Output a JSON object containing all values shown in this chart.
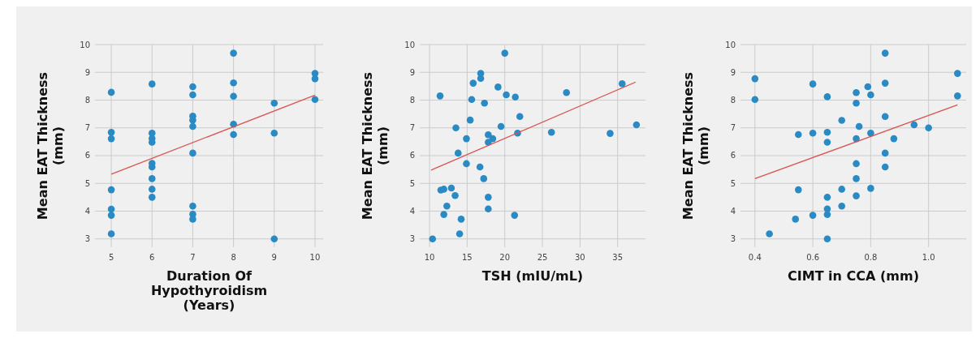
{
  "chart_data": [
    {
      "type": "scatter",
      "xlabel": "Duration Of\nHypothyroidism\n(Years)",
      "ylabel": "Mean EAT Thickness\n(mm)",
      "xlim": [
        4.6,
        10.2
      ],
      "ylim": [
        2.7,
        10
      ],
      "xticks": [
        5,
        6,
        7,
        8,
        9,
        10
      ],
      "yticks": [
        3,
        4,
        5,
        6,
        7,
        8,
        9,
        10
      ],
      "grid": true,
      "marker": "circle",
      "series": [
        {
          "color": "#2a8bc4",
          "x": [
            5,
            5,
            5,
            5,
            5,
            5,
            5,
            6,
            6,
            6,
            6,
            6,
            6,
            6,
            6,
            6,
            7,
            7,
            7,
            7,
            7,
            7,
            7,
            7,
            7,
            8,
            8,
            8,
            8,
            8,
            9,
            9,
            9,
            10,
            10,
            10
          ],
          "values": [
            8.28,
            6.84,
            6.61,
            4.77,
            4.07,
            3.85,
            3.18,
            8.58,
            6.81,
            6.62,
            6.48,
            5.72,
            5.59,
            5.17,
            4.79,
            4.5,
            8.48,
            8.19,
            7.42,
            7.28,
            7.05,
            6.09,
            4.18,
            3.89,
            3.71,
            9.69,
            8.62,
            8.14,
            7.13,
            6.76,
            7.89,
            6.81,
            3.0,
            8.96,
            8.77,
            8.02
          ]
        },
        {
          "type": "line",
          "color": "#d9534f",
          "marker": "none",
          "x": [
            5,
            10
          ],
          "values": [
            5.33,
            8.18
          ]
        }
      ]
    },
    {
      "type": "scatter",
      "xlabel": "TSH (mIU/mL)",
      "ylabel": "Mean EAT Thickness\n(mm)",
      "xlim": [
        8.7,
        38.7
      ],
      "ylim": [
        2.7,
        10
      ],
      "xticks": [
        10,
        15,
        20,
        25,
        30,
        35
      ],
      "yticks": [
        3,
        4,
        5,
        6,
        7,
        8,
        9,
        10
      ],
      "grid": true,
      "marker": "circle",
      "series": [
        {
          "color": "#2a8bc4",
          "x": [
            20.0,
            16.8,
            16.8,
            15.8,
            19.1,
            11.4,
            20.2,
            21.4,
            15.6,
            17.3,
            28.2,
            35.6,
            15.4,
            22.0,
            13.5,
            19.5,
            37.5,
            26.2,
            34.0,
            21.7,
            17.8,
            18.4,
            14.9,
            17.8,
            13.8,
            14.9,
            16.7,
            17.2,
            11.5,
            11.9,
            12.9,
            13.4,
            17.8,
            12.3,
            11.9,
            17.8,
            14.2,
            21.3,
            14.0,
            10.4
          ],
          "values": [
            9.69,
            8.96,
            8.78,
            8.61,
            8.47,
            8.15,
            8.19,
            8.11,
            8.02,
            7.89,
            8.27,
            8.59,
            7.28,
            7.41,
            7.0,
            7.05,
            7.11,
            6.84,
            6.8,
            6.81,
            6.75,
            6.61,
            6.61,
            6.48,
            6.09,
            5.71,
            5.59,
            5.17,
            4.76,
            4.79,
            4.83,
            4.56,
            4.5,
            4.18,
            3.88,
            4.08,
            3.71,
            3.85,
            3.18,
            3.0
          ]
        },
        {
          "type": "line",
          "color": "#d9534f",
          "marker": "none",
          "x": [
            10.2,
            37.4
          ],
          "values": [
            5.48,
            8.65
          ]
        }
      ]
    },
    {
      "type": "scatter",
      "xlabel": "CIMT in CCA (mm)",
      "ylabel": "Mean EAT Thickness\n(mm)",
      "xlim": [
        0.35,
        1.13
      ],
      "ylim": [
        2.7,
        10
      ],
      "xticks": [
        0.4,
        0.6,
        0.8,
        {
          "value": 1,
          "label": "1.0"
        }
      ],
      "yticks": [
        3,
        4,
        5,
        6,
        7,
        8,
        9,
        10
      ],
      "grid": true,
      "marker": "circle",
      "series": [
        {
          "color": "#2a8bc4",
          "x": [
            0.85,
            0.4,
            1.1,
            0.6,
            0.85,
            0.79,
            0.75,
            0.8,
            0.65,
            1.1,
            0.4,
            0.75,
            0.85,
            0.7,
            0.76,
            0.95,
            1.0,
            0.55,
            0.6,
            0.65,
            0.8,
            0.65,
            0.75,
            0.88,
            0.85,
            0.75,
            0.85,
            0.75,
            0.55,
            0.7,
            0.8,
            0.65,
            0.75,
            0.7,
            0.65,
            0.65,
            0.6,
            0.54,
            0.45,
            0.65
          ],
          "values": [
            9.69,
            8.77,
            8.96,
            8.58,
            8.61,
            8.48,
            8.27,
            8.19,
            8.12,
            8.15,
            8.02,
            7.89,
            7.41,
            7.27,
            7.05,
            7.11,
            7.0,
            6.76,
            6.81,
            6.84,
            6.81,
            6.48,
            6.61,
            6.61,
            6.09,
            5.71,
            5.59,
            5.17,
            4.77,
            4.79,
            4.82,
            4.5,
            4.55,
            4.18,
            4.08,
            3.88,
            3.85,
            3.71,
            3.18,
            3.0
          ]
        },
        {
          "type": "line",
          "color": "#d9534f",
          "marker": "none",
          "x": [
            0.4,
            1.1
          ],
          "values": [
            5.17,
            7.83
          ]
        }
      ]
    }
  ]
}
